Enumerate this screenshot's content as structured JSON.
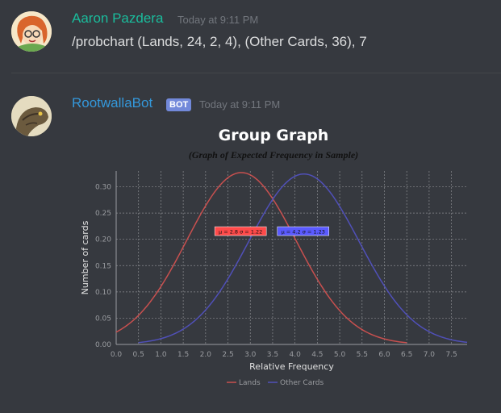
{
  "messages": [
    {
      "username": "Aaron Pazdera",
      "username_color": "#1abc9c",
      "timestamp": "Today at 9:11 PM",
      "content": "/probchart (Lands, 24, 2, 4), (Other Cards, 36), 7"
    },
    {
      "username": "RootwallaBot",
      "username_color": "#3498db",
      "badge": "BOT",
      "timestamp": "Today at 9:11 PM"
    }
  ],
  "chart_data": {
    "type": "line",
    "title": "Group Graph",
    "subtitle": "(Graph of Expected Frequency in Sample)",
    "xlabel": "Relative Frequency",
    "ylabel": "Number of cards",
    "xlim": [
      0,
      7.85
    ],
    "ylim": [
      0,
      0.33
    ],
    "x_ticks": [
      "0.0",
      "0.5",
      "1.0",
      "1.5",
      "2.0",
      "2.5",
      "3.0",
      "3.5",
      "4.0",
      "4.5",
      "5.0",
      "5.5",
      "6.0",
      "6.5",
      "7.0",
      "7.5"
    ],
    "y_ticks": [
      "0.00",
      "0.05",
      "0.10",
      "0.15",
      "0.20",
      "0.25",
      "0.30"
    ],
    "grid": true,
    "legend": "bottom",
    "series": [
      {
        "name": "Lands",
        "color": "#c8504f",
        "mean": 2.8,
        "sd": 1.22,
        "x_range": [
          0,
          6.5
        ],
        "annotation": "μ = 2.8 σ = 1.22",
        "annotation_bg": "#ff4a4a"
      },
      {
        "name": "Other Cards",
        "color": "#5050b8",
        "mean": 4.2,
        "sd": 1.23,
        "x_range": [
          0.5,
          7.85
        ],
        "annotation": "μ = 4.2 σ = 1.23",
        "annotation_bg": "#5a5aff"
      }
    ]
  }
}
